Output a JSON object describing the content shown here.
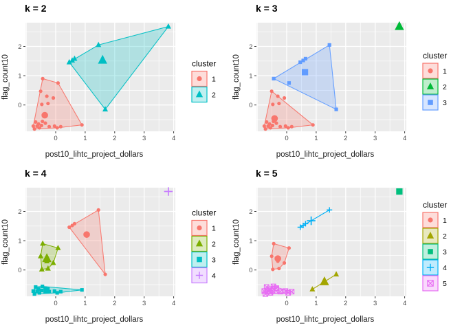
{
  "figure": {
    "background": "#FFFFFF"
  },
  "style": {
    "panel_bg": "#EBEBEB",
    "grid_color": "#FFFFFF",
    "tick_mark_color": "#333333",
    "tick_label_color": "#4D4D4D",
    "axis_title_color": "#1A1A1A",
    "title_color": "#000000",
    "hull_fill_opacity": 0.25,
    "legend_key_fill_opacity": 0.25
  },
  "legend": {
    "title": "cluster"
  },
  "chart_data": [
    {
      "type": "scatter",
      "title": "k = 2",
      "xlabel": "post10_lihtc_project_dollars",
      "ylabel": "flag_count10",
      "x_ticks": [
        0,
        1,
        2,
        3,
        4
      ],
      "y_ticks": [
        0,
        1,
        2
      ],
      "xlim": [
        -1.03,
        4.06
      ],
      "ylim": [
        -0.9,
        2.81
      ],
      "grid": true,
      "legend_position": "right",
      "legend_title": "cluster",
      "clusters": [
        {
          "label": "1",
          "color": "#F8766D",
          "shape": "circle",
          "points": [
            [
              -0.44,
              0.9
            ],
            [
              0.08,
              0.75
            ],
            [
              -0.51,
              0.47
            ],
            [
              -0.3,
              0.3
            ],
            [
              -0.08,
              0.24
            ],
            [
              -0.47,
              0.02
            ],
            [
              -0.26,
              0.05
            ],
            [
              0.89,
              -0.68
            ],
            [
              -0.76,
              -0.72
            ],
            [
              -0.72,
              -0.82
            ],
            [
              -0.68,
              -0.58
            ],
            [
              -0.63,
              -0.72
            ],
            [
              -0.58,
              -0.65
            ],
            [
              -0.55,
              -0.78
            ],
            [
              -0.48,
              -0.7
            ],
            [
              -0.45,
              -0.56
            ],
            [
              -0.35,
              -0.62
            ],
            [
              -0.22,
              -0.74
            ],
            [
              -0.04,
              -0.72
            ],
            [
              0.05,
              -0.78
            ],
            [
              0.17,
              -0.74
            ]
          ],
          "hull": [
            [
              -0.44,
              0.9
            ],
            [
              0.08,
              0.75
            ],
            [
              0.89,
              -0.68
            ],
            [
              0.05,
              -0.78
            ],
            [
              -0.72,
              -0.82
            ],
            [
              -0.76,
              -0.72
            ]
          ],
          "centroid": [
            -0.37,
            -0.35
          ]
        },
        {
          "label": "2",
          "color": "#00BFC4",
          "shape": "triangle",
          "points": [
            [
              0.46,
              1.46
            ],
            [
              0.56,
              1.52
            ],
            [
              0.64,
              1.58
            ],
            [
              1.45,
              2.05
            ],
            [
              3.82,
              2.68
            ],
            [
              1.68,
              -0.15
            ]
          ],
          "hull": [
            [
              0.46,
              1.46
            ],
            [
              1.45,
              2.05
            ],
            [
              3.82,
              2.68
            ],
            [
              1.68,
              -0.15
            ]
          ],
          "centroid": [
            1.59,
            1.53
          ]
        }
      ]
    },
    {
      "type": "scatter",
      "title": "k = 3",
      "xlabel": "post10_lihtc_project_dollars",
      "ylabel": "flag_count10",
      "x_ticks": [
        0,
        1,
        2,
        3,
        4
      ],
      "y_ticks": [
        0,
        1,
        2
      ],
      "xlim": [
        -1.03,
        4.06
      ],
      "ylim": [
        -0.9,
        2.81
      ],
      "grid": true,
      "legend_position": "right",
      "legend_title": "cluster",
      "clusters": [
        {
          "label": "1",
          "color": "#F8766D",
          "shape": "circle",
          "points": [
            [
              -0.51,
              0.47
            ],
            [
              -0.3,
              0.3
            ],
            [
              -0.08,
              0.24
            ],
            [
              -0.47,
              0.02
            ],
            [
              -0.26,
              0.05
            ],
            [
              0.89,
              -0.68
            ],
            [
              -0.76,
              -0.72
            ],
            [
              -0.72,
              -0.82
            ],
            [
              -0.68,
              -0.58
            ],
            [
              -0.63,
              -0.72
            ],
            [
              -0.58,
              -0.65
            ],
            [
              -0.55,
              -0.78
            ],
            [
              -0.48,
              -0.7
            ],
            [
              -0.45,
              -0.56
            ],
            [
              -0.35,
              -0.62
            ],
            [
              -0.22,
              -0.74
            ],
            [
              -0.04,
              -0.72
            ],
            [
              0.05,
              -0.78
            ],
            [
              0.17,
              -0.74
            ]
          ],
          "hull": [
            [
              -0.51,
              0.47
            ],
            [
              -0.3,
              0.3
            ],
            [
              0.89,
              -0.68
            ],
            [
              0.05,
              -0.78
            ],
            [
              -0.72,
              -0.82
            ],
            [
              -0.76,
              -0.72
            ]
          ],
          "centroid": [
            -0.41,
            -0.46
          ]
        },
        {
          "label": "2",
          "color": "#00BA38",
          "shape": "triangle",
          "points": [],
          "hull": [],
          "centroid": [
            3.82,
            2.68
          ]
        },
        {
          "label": "3",
          "color": "#619CFF",
          "shape": "square",
          "points": [
            [
              -0.44,
              0.9
            ],
            [
              0.08,
              0.75
            ],
            [
              0.46,
              1.46
            ],
            [
              0.56,
              1.52
            ],
            [
              0.64,
              1.58
            ],
            [
              1.45,
              2.05
            ],
            [
              1.68,
              -0.15
            ]
          ],
          "hull": [
            [
              -0.44,
              0.9
            ],
            [
              1.45,
              2.05
            ],
            [
              1.68,
              -0.15
            ]
          ],
          "centroid": [
            0.62,
            1.12
          ]
        }
      ]
    },
    {
      "type": "scatter",
      "title": "k = 4",
      "xlabel": "post10_lihtc_project_dollars",
      "ylabel": "flag_count10",
      "x_ticks": [
        0,
        1,
        2,
        3,
        4
      ],
      "y_ticks": [
        0,
        1,
        2
      ],
      "xlim": [
        -1.03,
        4.06
      ],
      "ylim": [
        -0.9,
        2.81
      ],
      "grid": true,
      "legend_position": "right",
      "legend_title": "cluster",
      "clusters": [
        {
          "label": "1",
          "color": "#F8766D",
          "shape": "circle",
          "points": [
            [
              0.46,
              1.46
            ],
            [
              0.56,
              1.52
            ],
            [
              0.64,
              1.58
            ],
            [
              1.45,
              2.05
            ],
            [
              1.68,
              -0.15
            ]
          ],
          "hull": [
            [
              0.46,
              1.46
            ],
            [
              1.45,
              2.05
            ],
            [
              1.68,
              -0.15
            ]
          ],
          "centroid": [
            1.05,
            1.21
          ]
        },
        {
          "label": "2",
          "color": "#7CAE00",
          "shape": "triangle",
          "points": [
            [
              -0.44,
              0.9
            ],
            [
              0.08,
              0.75
            ],
            [
              -0.51,
              0.47
            ],
            [
              -0.3,
              0.3
            ],
            [
              -0.08,
              0.24
            ],
            [
              -0.47,
              0.02
            ],
            [
              -0.26,
              0.05
            ]
          ],
          "hull": [
            [
              -0.44,
              0.9
            ],
            [
              0.08,
              0.75
            ],
            [
              -0.08,
              0.24
            ],
            [
              -0.26,
              0.05
            ],
            [
              -0.47,
              0.02
            ],
            [
              -0.51,
              0.47
            ]
          ],
          "centroid": [
            -0.3,
            0.39
          ]
        },
        {
          "label": "3",
          "color": "#00BFC4",
          "shape": "square",
          "points": [
            [
              -0.76,
              -0.72
            ],
            [
              -0.72,
              -0.82
            ],
            [
              -0.68,
              -0.58
            ],
            [
              -0.63,
              -0.72
            ],
            [
              -0.58,
              -0.65
            ],
            [
              -0.55,
              -0.78
            ],
            [
              -0.48,
              -0.7
            ],
            [
              -0.45,
              -0.56
            ],
            [
              -0.35,
              -0.62
            ],
            [
              -0.22,
              -0.74
            ],
            [
              -0.04,
              -0.72
            ],
            [
              0.05,
              -0.78
            ],
            [
              0.17,
              -0.74
            ],
            [
              0.89,
              -0.68
            ]
          ],
          "hull": [
            [
              -0.68,
              -0.58
            ],
            [
              -0.45,
              -0.56
            ],
            [
              0.89,
              -0.68
            ],
            [
              0.05,
              -0.78
            ],
            [
              -0.72,
              -0.82
            ],
            [
              -0.76,
              -0.72
            ]
          ],
          "centroid": [
            -0.31,
            -0.7
          ]
        },
        {
          "label": "4",
          "color": "#C77CFF",
          "shape": "plus",
          "points": [],
          "hull": [],
          "centroid": [
            3.82,
            2.68
          ]
        }
      ]
    },
    {
      "type": "scatter",
      "title": "k = 5",
      "xlabel": "post10_lihtc_project_dollars",
      "ylabel": "flag_count10",
      "x_ticks": [
        0,
        1,
        2,
        3,
        4
      ],
      "y_ticks": [
        0,
        1,
        2
      ],
      "xlim": [
        -1.03,
        4.06
      ],
      "ylim": [
        -0.9,
        2.81
      ],
      "grid": true,
      "legend_position": "right",
      "legend_title": "cluster",
      "clusters": [
        {
          "label": "1",
          "color": "#F8766D",
          "shape": "circle",
          "points": [
            [
              -0.44,
              0.9
            ],
            [
              0.08,
              0.75
            ],
            [
              -0.51,
              0.47
            ],
            [
              -0.3,
              0.3
            ],
            [
              -0.08,
              0.24
            ],
            [
              -0.47,
              0.02
            ],
            [
              -0.26,
              0.05
            ]
          ],
          "hull": [
            [
              -0.44,
              0.9
            ],
            [
              0.08,
              0.75
            ],
            [
              -0.08,
              0.24
            ],
            [
              -0.26,
              0.05
            ],
            [
              -0.47,
              0.02
            ],
            [
              -0.51,
              0.47
            ]
          ],
          "centroid": [
            -0.3,
            0.39
          ]
        },
        {
          "label": "2",
          "color": "#A3A500",
          "shape": "triangle",
          "points": [
            [
              0.87,
              -0.66
            ],
            [
              1.68,
              -0.15
            ]
          ],
          "hull": [
            [
              0.87,
              -0.66
            ],
            [
              1.68,
              -0.15
            ]
          ],
          "centroid": [
            1.28,
            -0.4
          ]
        },
        {
          "label": "3",
          "color": "#00BF7D",
          "shape": "square",
          "points": [],
          "hull": [],
          "centroid": [
            3.82,
            2.68
          ]
        },
        {
          "label": "4",
          "color": "#00B0F6",
          "shape": "plus",
          "points": [
            [
              0.46,
              1.46
            ],
            [
              0.56,
              1.52
            ],
            [
              0.64,
              1.58
            ],
            [
              1.45,
              2.05
            ]
          ],
          "hull": [
            [
              0.46,
              1.46
            ],
            [
              1.45,
              2.05
            ]
          ],
          "centroid": [
            0.83,
            1.68
          ]
        },
        {
          "label": "5",
          "color": "#E76BF3",
          "shape": "square-x",
          "points": [
            [
              -0.76,
              -0.72
            ],
            [
              -0.72,
              -0.82
            ],
            [
              -0.68,
              -0.58
            ],
            [
              -0.63,
              -0.72
            ],
            [
              -0.58,
              -0.65
            ],
            [
              -0.55,
              -0.78
            ],
            [
              -0.48,
              -0.7
            ],
            [
              -0.45,
              -0.56
            ],
            [
              -0.35,
              -0.62
            ],
            [
              -0.22,
              -0.74
            ],
            [
              -0.04,
              -0.72
            ],
            [
              0.05,
              -0.78
            ],
            [
              0.17,
              -0.74
            ]
          ],
          "hull": [
            [
              -0.68,
              -0.58
            ],
            [
              -0.45,
              -0.56
            ],
            [
              0.17,
              -0.74
            ],
            [
              0.05,
              -0.78
            ],
            [
              -0.72,
              -0.82
            ],
            [
              -0.76,
              -0.72
            ]
          ],
          "centroid": [
            -0.4,
            -0.68
          ]
        }
      ]
    }
  ]
}
